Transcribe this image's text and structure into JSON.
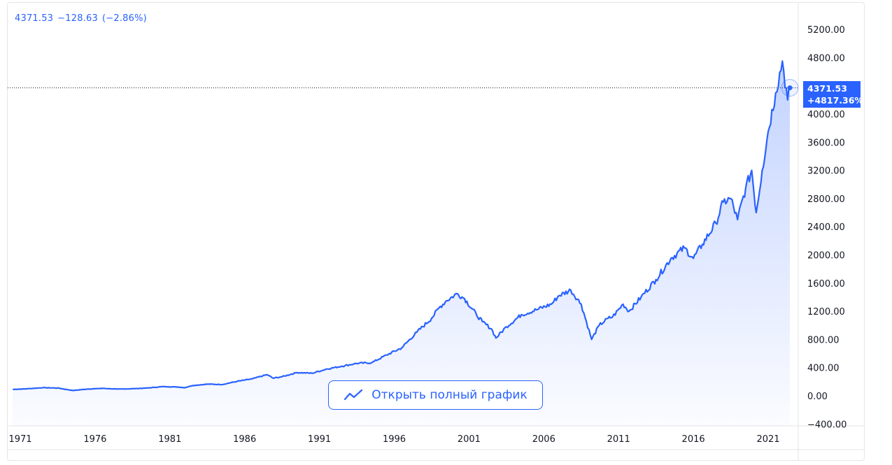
{
  "header": {
    "last": "4371.53",
    "change": "−128.63",
    "change_pct": "(−2.86%)"
  },
  "price_label": {
    "price": "4371.53",
    "pct": "+4817.36%"
  },
  "open_button": {
    "label": "Открыть полный график",
    "icon": "line-chart-icon"
  },
  "colors": {
    "line": "#2962ff",
    "accent": "#2962ff"
  },
  "chart_data": {
    "type": "area",
    "title": "",
    "xlabel": "",
    "ylabel": "",
    "ylim": [
      -400,
      5400
    ],
    "xlim": [
      1970.4,
      2023.0
    ],
    "y_ticks": [
      "5200.00",
      "4800.00",
      "4000.00",
      "3600.00",
      "3200.00",
      "2800.00",
      "2400.00",
      "2000.00",
      "1600.00",
      "1200.00",
      "800.00",
      "400.00",
      "0.00",
      "−400.00"
    ],
    "y_tick_values": [
      5200,
      4800,
      4000,
      3600,
      3200,
      2800,
      2400,
      2000,
      1600,
      1200,
      800,
      400,
      0,
      -400
    ],
    "x_ticks": [
      "1971",
      "1976",
      "1981",
      "1986",
      "1991",
      "1996",
      "2001",
      "2006",
      "2011",
      "2016",
      "2021"
    ],
    "x_tick_values": [
      1971,
      1976,
      1981,
      1986,
      1991,
      1996,
      2001,
      2006,
      2011,
      2016,
      2021
    ],
    "grid": false,
    "last_value": 4371.53,
    "series": [
      {
        "x": [
          1970.5,
          1971.5,
          1972.5,
          1973.5,
          1974.5,
          1975.0,
          1975.5,
          1976.5,
          1977.5,
          1978.5,
          1979.5,
          1980.5,
          1981.5,
          1982.0,
          1982.5,
          1983.5,
          1984.5,
          1985.5,
          1986.5,
          1987.5,
          1987.9,
          1988.5,
          1989.5,
          1990.5,
          1991.5,
          1992.5,
          1993.5,
          1994.5,
          1995.5,
          1996.5,
          1997.5,
          1998.5,
          1999.0,
          1999.5,
          2000.2,
          2000.7,
          2001.5,
          2001.9,
          2002.5,
          2002.8,
          2003.5,
          2004.5,
          2005.5,
          2006.5,
          2007.0,
          2007.8,
          2008.5,
          2009.2,
          2009.7,
          2010.3,
          2010.6,
          2011.3,
          2011.7,
          2012.5,
          2013.5,
          2014.5,
          2015.4,
          2016.0,
          2016.6,
          2017.5,
          2018.0,
          2018.5,
          2018.95,
          2019.5,
          2019.9,
          2020.2,
          2020.6,
          2021.0,
          2021.5,
          2021.95,
          2022.3,
          2022.45
        ],
        "values": [
          90,
          100,
          115,
          110,
          75,
          85,
          95,
          105,
          95,
          100,
          110,
          130,
          125,
          115,
          145,
          165,
          160,
          205,
          240,
          300,
          250,
          270,
          330,
          320,
          380,
          420,
          460,
          470,
          580,
          680,
          900,
          1100,
          1250,
          1350,
          1450,
          1380,
          1150,
          1050,
          950,
          820,
          980,
          1150,
          1220,
          1300,
          1420,
          1500,
          1300,
          800,
          1000,
          1100,
          1120,
          1300,
          1200,
          1400,
          1650,
          1950,
          2100,
          1950,
          2150,
          2450,
          2750,
          2800,
          2500,
          2950,
          3200,
          2600,
          3200,
          3750,
          4300,
          4750,
          4200,
          4371.53
        ]
      }
    ]
  }
}
